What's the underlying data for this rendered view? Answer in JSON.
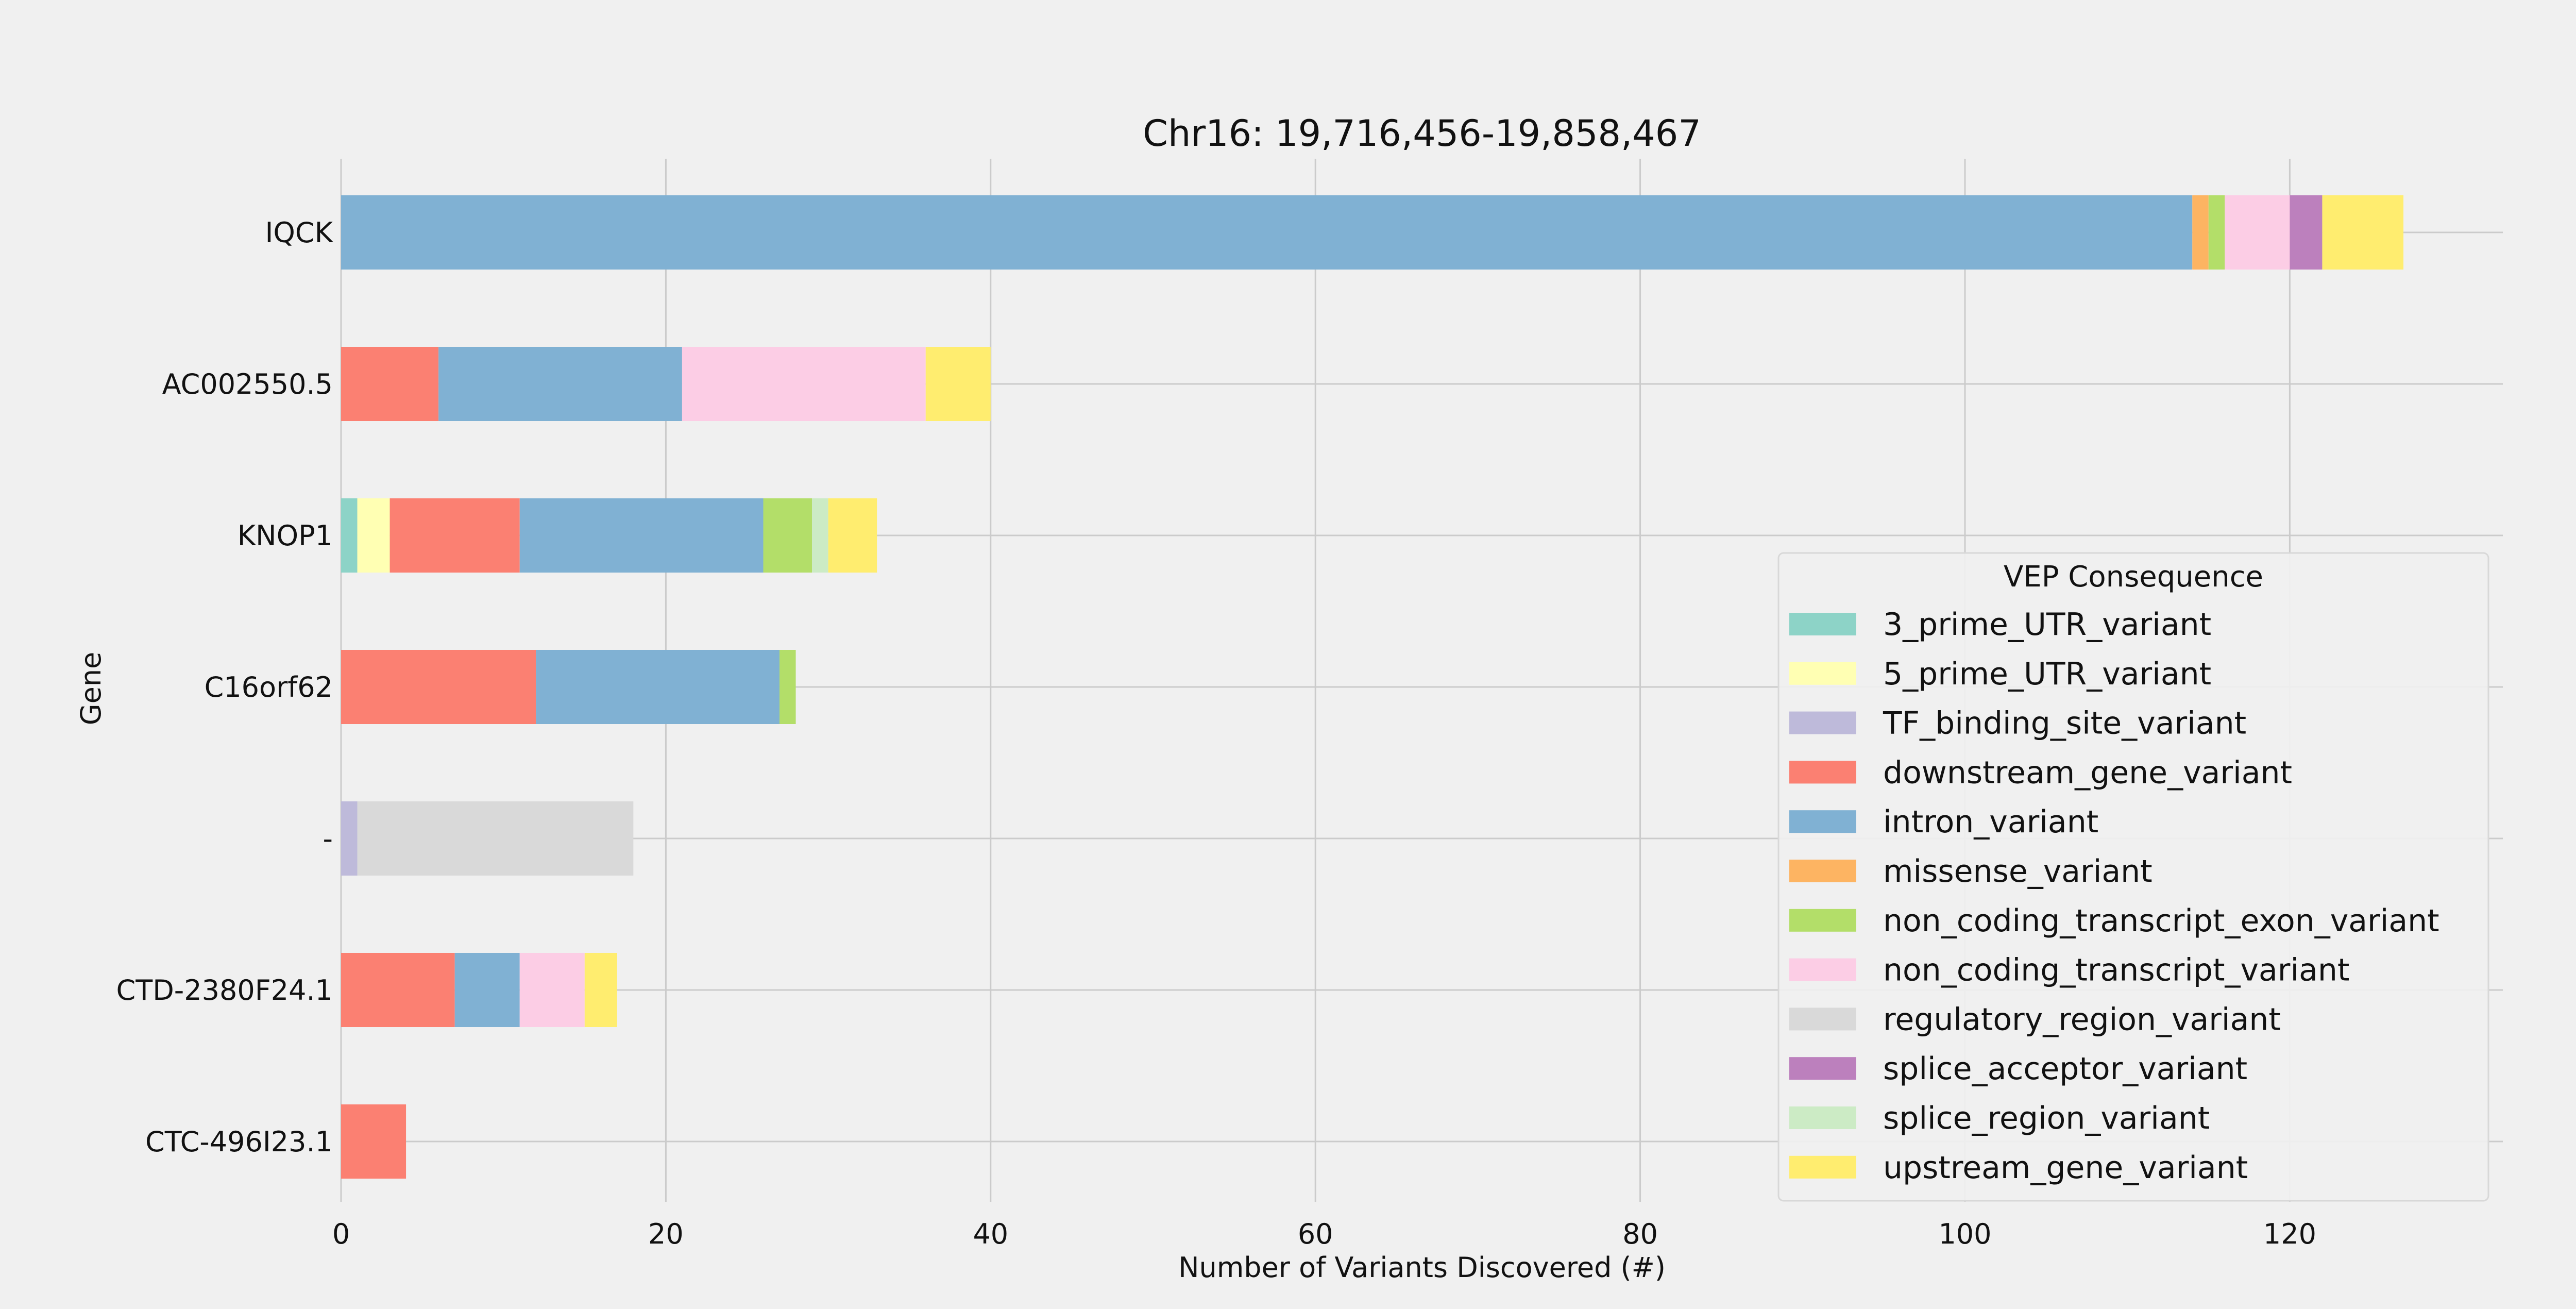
{
  "chart_data": {
    "type": "bar",
    "orientation": "horizontal",
    "stacked": true,
    "title": "Chr16: 19,716,456-19,858,467",
    "xlabel": "Number of Variants Discovered (#)",
    "ylabel": "Gene",
    "xlim": [
      0,
      133
    ],
    "xticks": [
      0,
      20,
      40,
      60,
      80,
      100,
      120
    ],
    "grid": true,
    "legend_title": "VEP Consequence",
    "legend_position": "lower-right",
    "categories": [
      "IQCK",
      "AC002550.5",
      "KNOP1",
      "C16orf62",
      "-",
      "CTD-2380F24.1",
      "CTC-496I23.1"
    ],
    "series": [
      {
        "name": "3_prime_UTR_variant",
        "color": "#8dd3c7",
        "values": [
          0,
          0,
          1,
          0,
          0,
          0,
          0
        ]
      },
      {
        "name": "5_prime_UTR_variant",
        "color": "#ffffb3",
        "values": [
          0,
          0,
          2,
          0,
          0,
          0,
          0
        ]
      },
      {
        "name": "TF_binding_site_variant",
        "color": "#bebada",
        "values": [
          0,
          0,
          0,
          0,
          1,
          0,
          0
        ]
      },
      {
        "name": "downstream_gene_variant",
        "color": "#fb8072",
        "values": [
          0,
          6,
          8,
          12,
          0,
          7,
          4
        ]
      },
      {
        "name": "intron_variant",
        "color": "#80b1d3",
        "values": [
          114,
          15,
          15,
          15,
          0,
          4,
          0
        ]
      },
      {
        "name": "missense_variant",
        "color": "#fdb462",
        "values": [
          1,
          0,
          0,
          0,
          0,
          0,
          0
        ]
      },
      {
        "name": "non_coding_transcript_exon_variant",
        "color": "#b3de69",
        "values": [
          1,
          0,
          3,
          1,
          0,
          0,
          0
        ]
      },
      {
        "name": "non_coding_transcript_variant",
        "color": "#fccde5",
        "values": [
          4,
          15,
          0,
          0,
          0,
          4,
          0
        ]
      },
      {
        "name": "regulatory_region_variant",
        "color": "#d9d9d9",
        "values": [
          0,
          0,
          0,
          0,
          17,
          0,
          0
        ]
      },
      {
        "name": "splice_acceptor_variant",
        "color": "#bc80bd",
        "values": [
          2,
          0,
          0,
          0,
          0,
          0,
          0
        ]
      },
      {
        "name": "splice_region_variant",
        "color": "#ccebc5",
        "values": [
          0,
          0,
          1,
          0,
          0,
          0,
          0
        ]
      },
      {
        "name": "upstream_gene_variant",
        "color": "#ffed6f",
        "values": [
          5,
          4,
          3,
          0,
          0,
          2,
          0
        ]
      }
    ]
  }
}
